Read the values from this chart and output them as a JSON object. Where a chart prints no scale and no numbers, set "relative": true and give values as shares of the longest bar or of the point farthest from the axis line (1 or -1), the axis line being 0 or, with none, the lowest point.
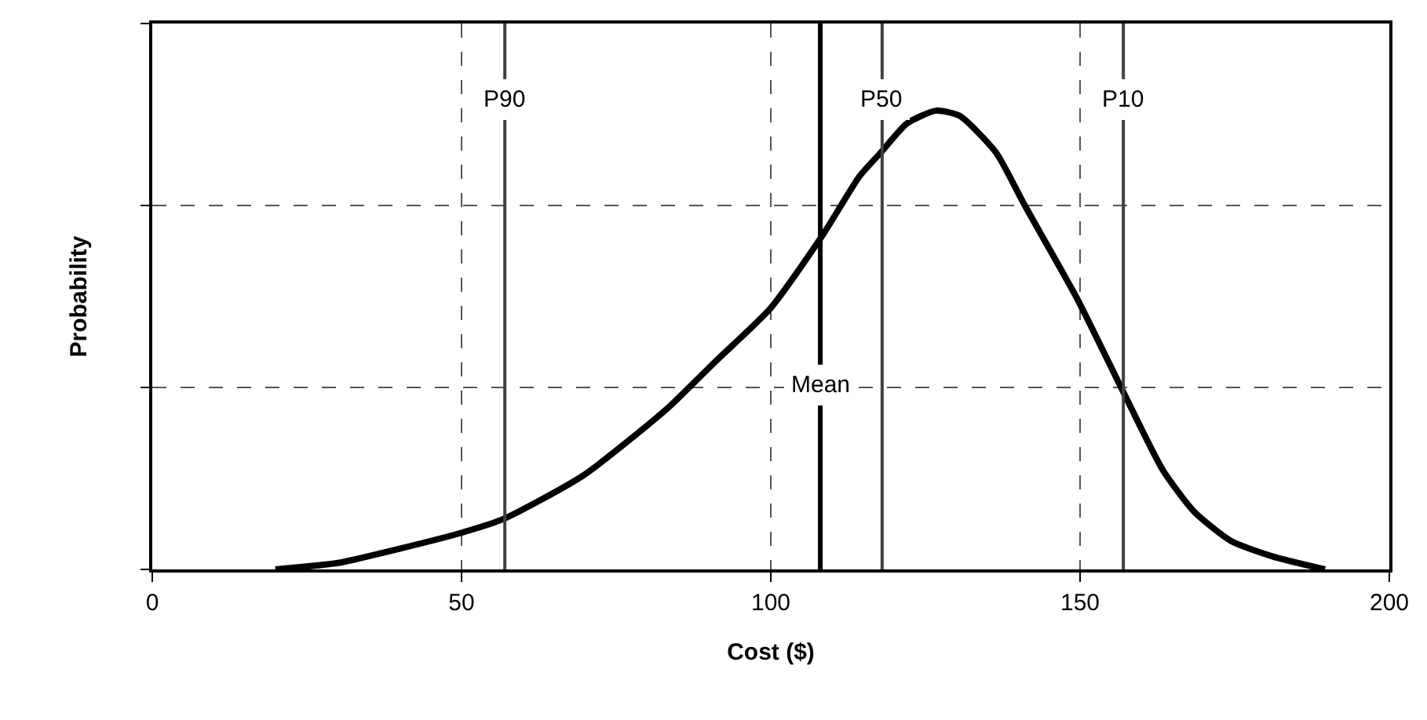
{
  "chart_data": {
    "type": "line",
    "xlabel": "Cost ($)",
    "ylabel": "Probability",
    "relative": true,
    "x": [
      19.9,
      30,
      38.4,
      50,
      56.8,
      69.7,
      83.2,
      90.8,
      100,
      108.3,
      114.4,
      117.8,
      122,
      126.7,
      130.5,
      136.4,
      141,
      149.5,
      156.8,
      163.4,
      168.5,
      174.4,
      181.2,
      189.6
    ],
    "series": [
      {
        "color": "#000000",
        "values": [
          0,
          0.014,
          0.04,
          0.08,
          0.11,
          0.205,
          0.35,
          0.45,
          0.57,
          0.727,
          0.858,
          0.909,
          0.972,
          1.0,
          0.989,
          0.909,
          0.795,
          0.591,
          0.392,
          0.216,
          0.125,
          0.062,
          0.028,
          0
        ]
      }
    ],
    "xlim": [
      0,
      200
    ],
    "xticks": [
      0,
      50,
      100,
      150,
      200
    ],
    "ref_lines": [
      {
        "axis": "x",
        "value": 57,
        "label": "P90",
        "color": "#404040"
      },
      {
        "axis": "x",
        "value": 108,
        "label": "Mean",
        "color": "#000000"
      },
      {
        "axis": "x",
        "value": 118,
        "label": "P50",
        "color": "#404040"
      },
      {
        "axis": "x",
        "value": 157,
        "label": "P10",
        "color": "#404040"
      }
    ],
    "grid": true,
    "tick_labels": "x",
    "marker": "none",
    "line_style": "solid"
  }
}
